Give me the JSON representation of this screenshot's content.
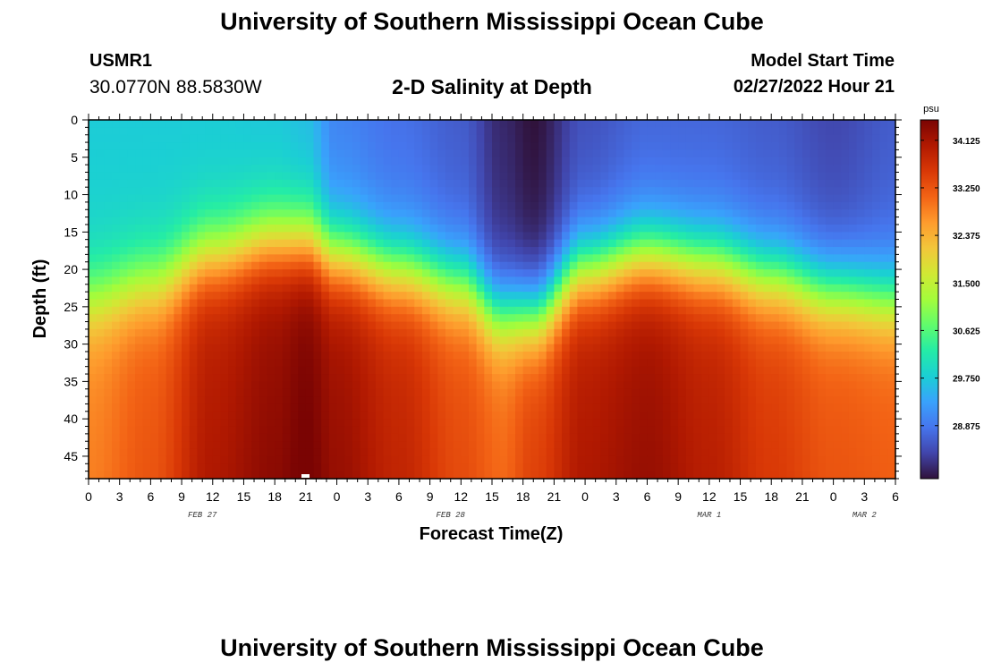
{
  "header": {
    "title": "University of Southern Mississippi Ocean Cube",
    "station_id": "USMR1",
    "coordinates": "30.0770N  88.5830W",
    "subtitle": "2-D Salinity at Depth",
    "model_start_label": "Model Start Time",
    "model_start_value": "02/27/2022 Hour 21"
  },
  "footer": {
    "title": "University of Southern Mississippi Ocean Cube"
  },
  "chart_data": {
    "type": "heatmap",
    "title": "2-D Salinity at Depth",
    "xlabel": "Forecast Time(Z)",
    "ylabel": "Depth (ft)",
    "x_range_hours": [
      0,
      78
    ],
    "y_range_ft": [
      0,
      48
    ],
    "x_tick_labels": [
      "0",
      "3",
      "6",
      "9",
      "12",
      "15",
      "18",
      "21",
      "0",
      "3",
      "6",
      "9",
      "12",
      "15",
      "18",
      "21",
      "0",
      "3",
      "6",
      "9",
      "12",
      "15",
      "18",
      "21",
      "0",
      "3",
      "6"
    ],
    "x_date_labels": [
      {
        "label": "FEB 27",
        "hour": 11
      },
      {
        "label": "FEB 28",
        "hour": 35
      },
      {
        "label": "MAR 1",
        "hour": 60
      },
      {
        "label": "MAR 2",
        "hour": 75
      }
    ],
    "y_tick_labels": [
      "0",
      "5",
      "10",
      "15",
      "20",
      "25",
      "30",
      "35",
      "40",
      "45"
    ],
    "y_ticks": [
      0,
      5,
      10,
      15,
      20,
      25,
      30,
      35,
      40,
      45
    ],
    "colorbar": {
      "unit": "psu",
      "min": 27.9,
      "max": 34.5,
      "ticks": [
        28.875,
        29.75,
        30.625,
        31.5,
        32.375,
        33.25,
        34.125
      ],
      "tick_labels": [
        "28.875",
        "29.750",
        "30.625",
        "31.500",
        "32.375",
        "33.250",
        "34.125"
      ]
    },
    "colormap": [
      "#30123b",
      "#4145ab",
      "#4675ed",
      "#39a2fc",
      "#1bcfd4",
      "#24eca6",
      "#61fc6c",
      "#a4fc3b",
      "#d1e834",
      "#f3c63a",
      "#fe9b2d",
      "#f36315",
      "#d93806",
      "#b11901",
      "#7a0403"
    ],
    "profiles": [
      {
        "hour": 0,
        "surface": 29.75,
        "pycnocline_ft": 24,
        "bottom": 32.6
      },
      {
        "hour": 6,
        "surface": 29.75,
        "pycnocline_ft": 22,
        "bottom": 33.0
      },
      {
        "hour": 12,
        "surface": 29.75,
        "pycnocline_ft": 18,
        "bottom": 33.8
      },
      {
        "hour": 18,
        "surface": 29.7,
        "pycnocline_ft": 16,
        "bottom": 34.1
      },
      {
        "hour": 21,
        "surface": 29.6,
        "pycnocline_ft": 16,
        "bottom": 34.3
      },
      {
        "hour": 24,
        "surface": 29.0,
        "pycnocline_ft": 18,
        "bottom": 34.0
      },
      {
        "hour": 30,
        "surface": 28.8,
        "pycnocline_ft": 20,
        "bottom": 33.6
      },
      {
        "hour": 36,
        "surface": 28.6,
        "pycnocline_ft": 22,
        "bottom": 33.1
      },
      {
        "hour": 40,
        "surface": 28.1,
        "pycnocline_ft": 26,
        "bottom": 32.8
      },
      {
        "hour": 43,
        "surface": 27.9,
        "pycnocline_ft": 26,
        "bottom": 33.2
      },
      {
        "hour": 48,
        "surface": 28.5,
        "pycnocline_ft": 20,
        "bottom": 33.8
      },
      {
        "hour": 54,
        "surface": 28.7,
        "pycnocline_ft": 18,
        "bottom": 34.0
      },
      {
        "hour": 60,
        "surface": 28.7,
        "pycnocline_ft": 19,
        "bottom": 33.7
      },
      {
        "hour": 66,
        "surface": 28.6,
        "pycnocline_ft": 21,
        "bottom": 33.3
      },
      {
        "hour": 72,
        "surface": 28.4,
        "pycnocline_ft": 23,
        "bottom": 33.0
      },
      {
        "hour": 78,
        "surface": 28.6,
        "pycnocline_ft": 24,
        "bottom": 32.9
      }
    ]
  }
}
